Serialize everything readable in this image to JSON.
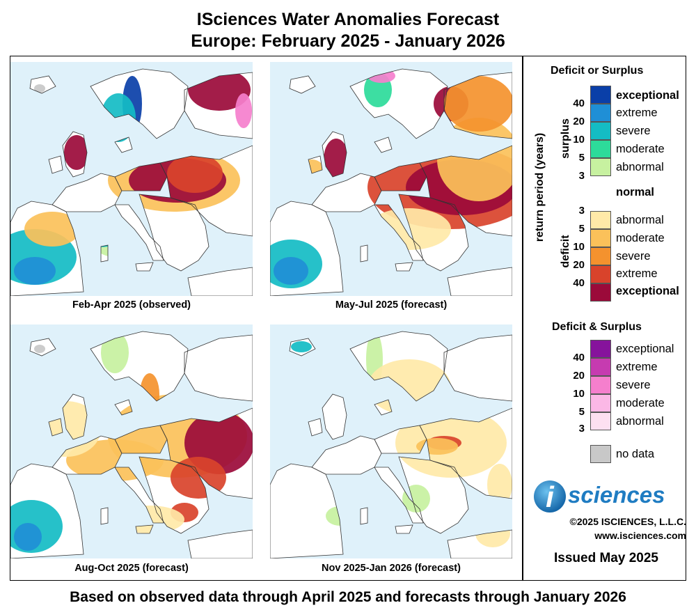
{
  "title": {
    "line1": "ISciences Water Anomalies Forecast",
    "line2": "Europe: February 2025 - January 2026"
  },
  "panels": [
    {
      "caption": "Feb-Apr 2025 (observed)"
    },
    {
      "caption": "May-Jul 2025 (forecast)"
    },
    {
      "caption": "Aug-Oct 2025 (forecast)"
    },
    {
      "caption": "Nov 2025-Jan 2026 (forecast)"
    }
  ],
  "legend": {
    "title1": "Deficit or Surplus",
    "axis_label": "return period (years)",
    "surplus_label": "surplus",
    "deficit_label": "deficit",
    "surplus": [
      {
        "label": "exceptional",
        "color": "#0a3fa8"
      },
      {
        "label": "extreme",
        "color": "#1f8fd6"
      },
      {
        "label": "severe",
        "color": "#14bcc4"
      },
      {
        "label": "moderate",
        "color": "#2ddb9a"
      },
      {
        "label": "abnormal",
        "color": "#c7f1a0"
      }
    ],
    "normal": {
      "label": "normal",
      "color": "#ffffff"
    },
    "deficit": [
      {
        "label": "abnormal",
        "color": "#ffe9a8"
      },
      {
        "label": "moderate",
        "color": "#fbc15a"
      },
      {
        "label": "severe",
        "color": "#f4922e"
      },
      {
        "label": "extreme",
        "color": "#d9432b"
      },
      {
        "label": "exceptional",
        "color": "#9b0a3a"
      }
    ],
    "surplus_numbers": [
      "40",
      "20",
      "10",
      "5",
      "3"
    ],
    "deficit_numbers": [
      "3",
      "5",
      "10",
      "20",
      "40"
    ],
    "title2": "Deficit & Surplus",
    "both": [
      {
        "label": "exceptional",
        "color": "#86139c"
      },
      {
        "label": "extreme",
        "color": "#c63bb0"
      },
      {
        "label": "severe",
        "color": "#f57fcd"
      },
      {
        "label": "moderate",
        "color": "#fbb8e6"
      },
      {
        "label": "abnormal",
        "color": "#fde0f1"
      }
    ],
    "both_numbers": [
      "40",
      "20",
      "10",
      "5",
      "3"
    ],
    "nodata": {
      "label": "no data",
      "color": "#c8c8c8"
    }
  },
  "brand": {
    "logo_text": "sciences",
    "logo_letter": "i",
    "copyright": "©2025 ISCIENCES, L.L.C.",
    "website": "www.isciences.com",
    "issued": "Issued May 2025"
  },
  "footer": "Based on observed data through April 2025 and forecasts through January 2026"
}
